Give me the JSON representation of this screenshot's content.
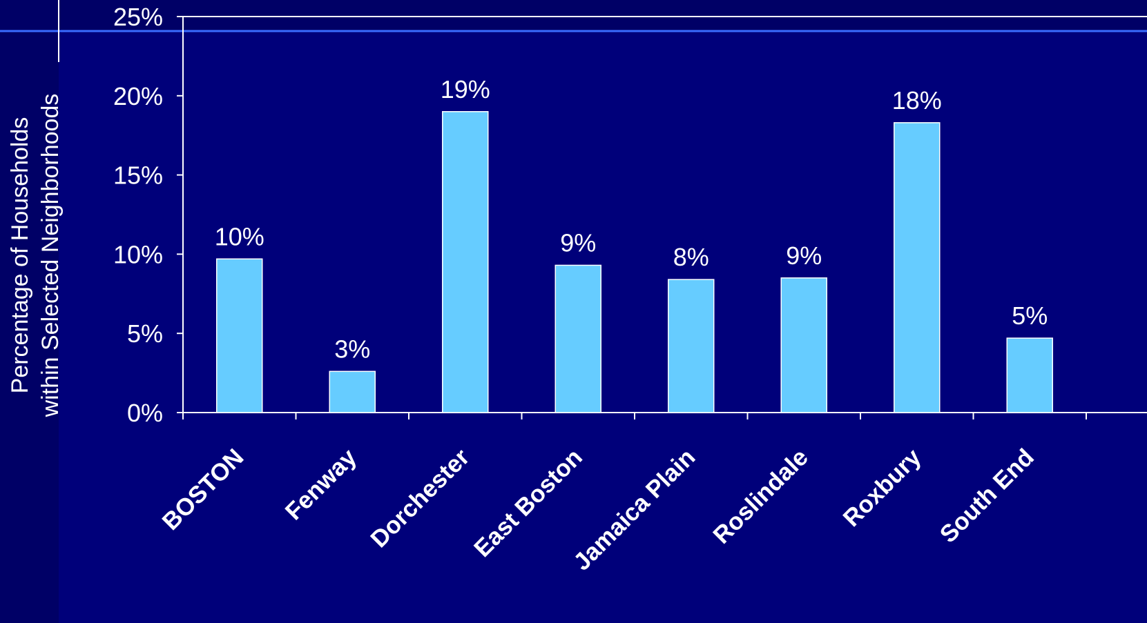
{
  "colors": {
    "background": "#00007a",
    "left_band": "#000066",
    "top_band": "#000066",
    "accent_line": "#3a6cff",
    "bar_fill": "#66ccff",
    "bar_stroke": "#ffffff",
    "text": "#ffffff"
  },
  "chart_data": {
    "type": "bar",
    "title": "",
    "xlabel": "",
    "ylabel_lines": [
      "Percentage of Households",
      "within Selected Neighborhoods"
    ],
    "ylim": [
      0,
      25
    ],
    "yticks": [
      0,
      5,
      10,
      15,
      20,
      25
    ],
    "ytick_labels": [
      "0%",
      "5%",
      "10%",
      "15%",
      "20%",
      "25%"
    ],
    "categories": [
      "BOSTON",
      "Fenway",
      "Dorchester",
      "East Boston",
      "Jamaica Plain",
      "Roslindale",
      "Roxbury",
      "South End"
    ],
    "values": [
      9.7,
      2.6,
      19.0,
      9.3,
      8.4,
      8.5,
      18.3,
      4.7
    ],
    "data_labels": [
      "10%",
      "3%",
      "19%",
      "9%",
      "8%",
      "9%",
      "18%",
      "5%"
    ],
    "grid": false,
    "legend": "none"
  }
}
